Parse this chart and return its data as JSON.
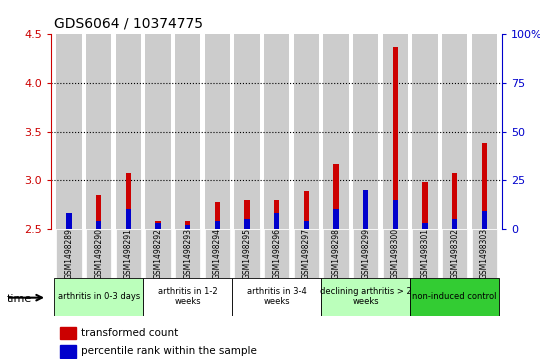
{
  "title": "GDS6064 / 10374775",
  "samples": [
    "GSM1498289",
    "GSM1498290",
    "GSM1498291",
    "GSM1498292",
    "GSM1498293",
    "GSM1498294",
    "GSM1498295",
    "GSM1498296",
    "GSM1498297",
    "GSM1498298",
    "GSM1498299",
    "GSM1498300",
    "GSM1498301",
    "GSM1498302",
    "GSM1498303"
  ],
  "red_values": [
    2.63,
    2.85,
    3.07,
    2.58,
    2.58,
    2.77,
    2.8,
    2.8,
    2.89,
    3.17,
    2.89,
    4.37,
    2.98,
    3.07,
    3.38
  ],
  "blue_values_pct": [
    8.0,
    4.0,
    10.0,
    3.0,
    2.0,
    4.0,
    5.0,
    8.0,
    4.0,
    10.0,
    20.0,
    15.0,
    3.0,
    5.0,
    9.0
  ],
  "ylim_left": [
    2.5,
    4.5
  ],
  "ylim_right": [
    0,
    100
  ],
  "yticks_left": [
    2.5,
    3.0,
    3.5,
    4.0,
    4.5
  ],
  "yticks_right": [
    0,
    25,
    50,
    75,
    100
  ],
  "ytick_labels_right": [
    "0",
    "25",
    "50",
    "75",
    "100%"
  ],
  "groups": [
    {
      "label": "arthritis in 0-3 days",
      "start": 0,
      "end": 3,
      "color": "#bbffbb"
    },
    {
      "label": "arthritis in 1-2\nweeks",
      "start": 3,
      "end": 6,
      "color": "#ffffff"
    },
    {
      "label": "arthritis in 3-4\nweeks",
      "start": 6,
      "end": 9,
      "color": "#ffffff"
    },
    {
      "label": "declining arthritis > 2\nweeks",
      "start": 9,
      "end": 12,
      "color": "#bbffbb"
    },
    {
      "label": "non-induced control",
      "start": 12,
      "end": 15,
      "color": "#33cc33"
    }
  ],
  "background_color": "#ffffff",
  "left_axis_color": "#cc0000",
  "right_axis_color": "#0000cc",
  "bar_gray": "#cccccc",
  "bar_red": "#cc0000",
  "bar_blue": "#0000cc"
}
